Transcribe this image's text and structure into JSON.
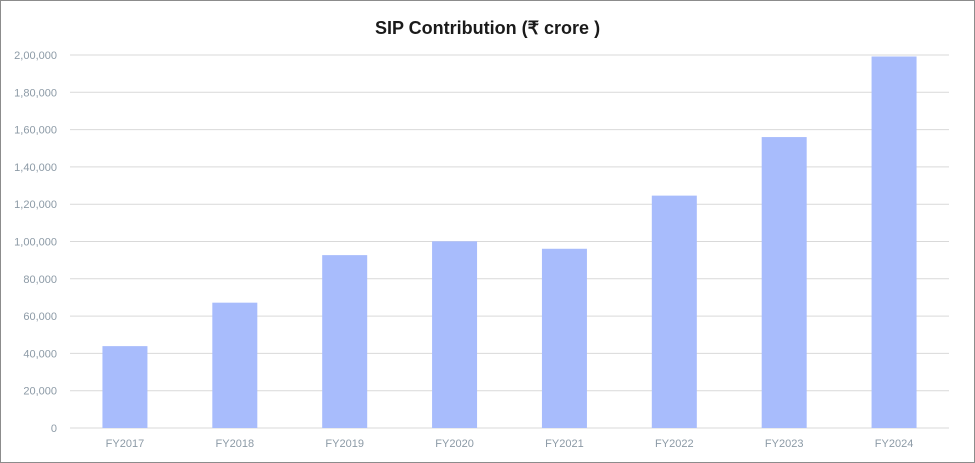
{
  "chart_data": {
    "type": "bar",
    "title": "SIP Contribution (₹ crore )",
    "categories": [
      "FY2017",
      "FY2018",
      "FY2019",
      "FY2020",
      "FY2021",
      "FY2022",
      "FY2023",
      "FY2024"
    ],
    "values": [
      43900,
      67200,
      92700,
      100100,
      96100,
      124600,
      156000,
      199200
    ],
    "ylim": [
      0,
      200000
    ],
    "y_ticks": [
      0,
      20000,
      40000,
      60000,
      80000,
      100000,
      120000,
      140000,
      160000,
      180000,
      200000
    ],
    "y_tick_labels": [
      "0",
      "20,000",
      "40,000",
      "60,000",
      "80,000",
      "1,00,000",
      "1,20,000",
      "1,40,000",
      "1,60,000",
      "1,80,000",
      "2,00,000"
    ],
    "grid": true,
    "bar_color": "#a8bcfc",
    "grid_color": "#d9d9d9",
    "legend": "none"
  }
}
